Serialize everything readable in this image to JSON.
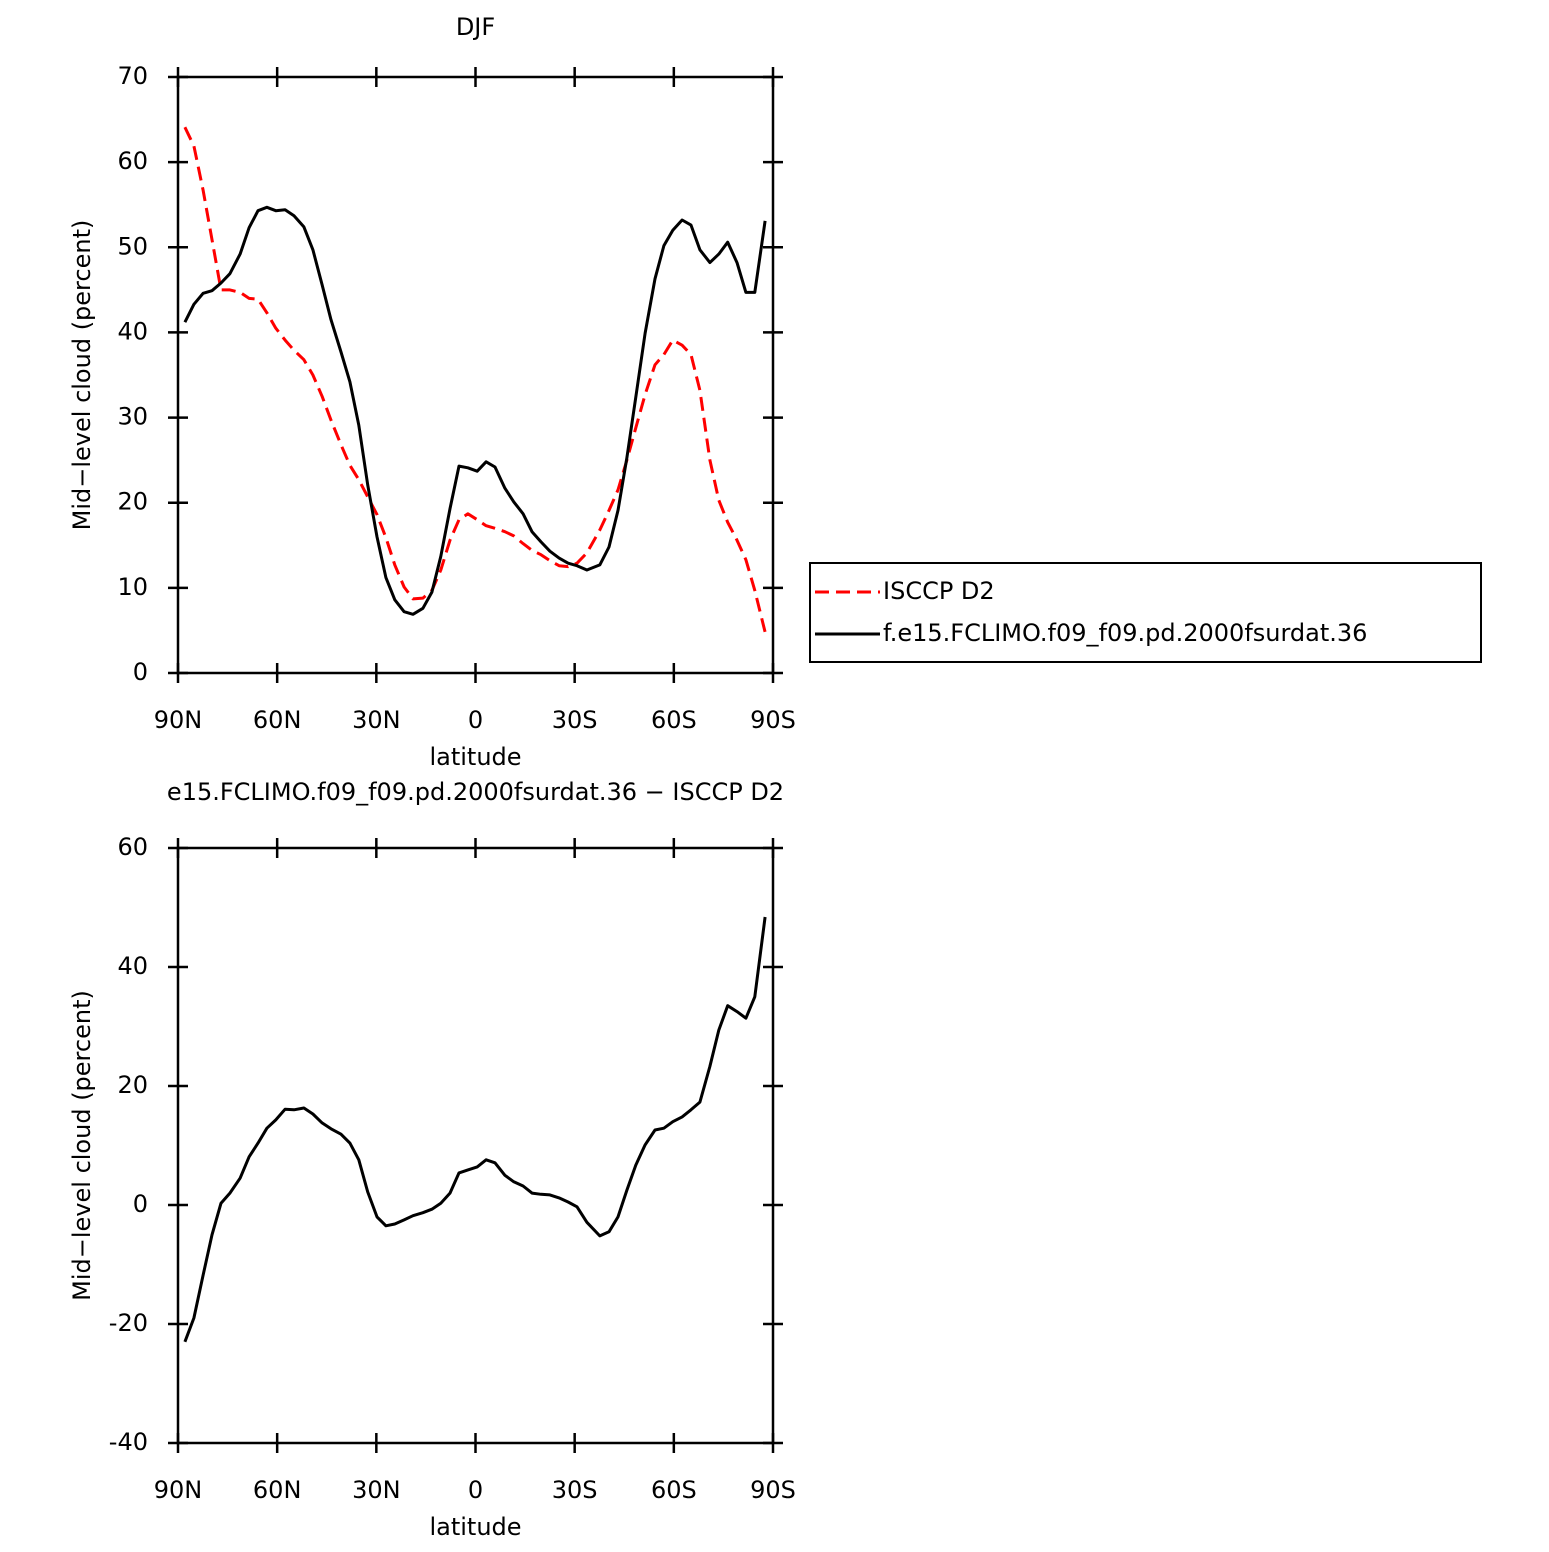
{
  "chart_data": [
    {
      "type": "line",
      "title": "DJF",
      "xlabel": "latitude",
      "ylabel": "Mid−level cloud (percent)",
      "x": [
        87.9,
        85.2,
        82.4,
        79.7,
        77,
        74.3,
        71.2,
        68.5,
        65.8,
        63.1,
        60.4,
        57.6,
        54.9,
        51.9,
        49.2,
        46.4,
        43.7,
        40.7,
        38,
        35.3,
        32.6,
        29.8,
        27.1,
        24.4,
        21.6,
        18.9,
        15.9,
        13.2,
        10.5,
        7.7,
        5,
        2.3,
        -0.5,
        -3.2,
        -5.9,
        -8.9,
        -11.6,
        -14.4,
        -17.1,
        -19.8,
        -22.5,
        -25.3,
        -28,
        -30.7,
        -33.7,
        -37.6,
        -40.4,
        -43.1,
        -45.8,
        -48.5,
        -51.3,
        -54.3,
        -57,
        -59.7,
        -62.5,
        -65.2,
        -67.9,
        -70.9,
        -73.6,
        -76.3,
        -79.1,
        -81.8,
        -84.5,
        -87.6
      ],
      "series": [
        {
          "name": "ISCCP D2",
          "color": "#ff0000",
          "linestyle": "dashed",
          "values": [
            64.1,
            61.9,
            56.7,
            50.9,
            45,
            45,
            44.7,
            44,
            43.9,
            42.3,
            40.5,
            39.1,
            37.9,
            36.8,
            35,
            32.5,
            29.7,
            26.8,
            24.4,
            22.7,
            20.7,
            18.6,
            15.9,
            12.7,
            10.1,
            8.7,
            8.8,
            9.7,
            12.1,
            15.6,
            18,
            18.7,
            18,
            17.3,
            17,
            16.6,
            16.1,
            15.2,
            14.4,
            13.9,
            13.2,
            12.6,
            12.5,
            12.9,
            14.1,
            16.8,
            19.1,
            21.5,
            25,
            28.8,
            32.7,
            36.2,
            37.4,
            39.1,
            38.5,
            37.4,
            33.2,
            25,
            20.3,
            17.7,
            15.6,
            13.3,
            9.7,
            4.8
          ]
        },
        {
          "name": "f.e15.FCLIMO.f09_f09.pd.2000fsurdat.36",
          "color": "#000000",
          "linestyle": "solid",
          "values": [
            41.2,
            43.3,
            44.6,
            44.9,
            45.8,
            46.9,
            49.2,
            52.3,
            54.3,
            54.7,
            54.3,
            54.4,
            53.7,
            52.4,
            49.7,
            45.6,
            41.5,
            37.7,
            34.2,
            29.1,
            22.1,
            16,
            11.2,
            8.6,
            7.2,
            6.9,
            7.6,
            9.5,
            13.7,
            19.3,
            24.3,
            24.1,
            23.7,
            24.8,
            24.2,
            21.7,
            20.1,
            18.7,
            16.6,
            15.4,
            14.3,
            13.5,
            12.9,
            12.6,
            12.1,
            12.7,
            14.8,
            19.1,
            25.3,
            32.4,
            39.9,
            46.3,
            50.2,
            52,
            53.2,
            52.6,
            49.7,
            48.2,
            49.2,
            50.6,
            48.2,
            44.7,
            44.7,
            53.1
          ]
        }
      ],
      "xlim": [
        90,
        -90
      ],
      "xticks": [
        {
          "value": 90,
          "label": "90N"
        },
        {
          "value": 60,
          "label": "60N"
        },
        {
          "value": 30,
          "label": "30N"
        },
        0,
        {
          "value": -30,
          "label": "30S"
        },
        {
          "value": -60,
          "label": "60S"
        },
        {
          "value": -90,
          "label": "90S"
        }
      ],
      "ylim": [
        0,
        70
      ],
      "yticks": [
        0,
        10,
        20,
        30,
        40,
        50,
        60,
        70
      ],
      "legend": "right"
    },
    {
      "type": "line",
      "title": "e15.FCLIMO.f09_f09.pd.2000fsurdat.36 − ISCCP D2",
      "xlabel": "latitude",
      "ylabel": "Mid−level cloud (percent)",
      "x": [
        87.9,
        85.2,
        82.4,
        79.7,
        77,
        74.3,
        71.2,
        68.5,
        65.8,
        63.1,
        60.4,
        57.6,
        54.9,
        51.9,
        49.2,
        46.4,
        43.7,
        40.7,
        38,
        35.3,
        32.6,
        29.8,
        27.1,
        24.4,
        21.6,
        18.9,
        15.9,
        13.2,
        10.5,
        7.7,
        5,
        2.3,
        -0.5,
        -3.2,
        -5.9,
        -8.9,
        -11.6,
        -14.4,
        -17.1,
        -19.8,
        -22.5,
        -25.3,
        -28,
        -30.7,
        -33.7,
        -37.6,
        -40.4,
        -43.1,
        -45.8,
        -48.5,
        -51.3,
        -54.3,
        -57,
        -59.7,
        -62.5,
        -65.2,
        -67.9,
        -70.9,
        -73.6,
        -76.3,
        -79.1,
        -81.8,
        -84.5,
        -87.6
      ],
      "values": [
        -23,
        -19,
        -11.8,
        -5,
        0.3,
        2,
        4.5,
        8.1,
        10.4,
        12.9,
        14.3,
        16.1,
        16,
        16.3,
        15.3,
        13.8,
        12.8,
        11.9,
        10.4,
        7.6,
        2.2,
        -2,
        -3.5,
        -3.2,
        -2.5,
        -1.8,
        -1.3,
        -0.7,
        0.3,
        2,
        5.4,
        5.9,
        6.4,
        7.6,
        7.1,
        5,
        3.9,
        3.2,
        2,
        1.8,
        1.7,
        1.2,
        0.5,
        -0.3,
        -2.9,
        -5.2,
        -4.5,
        -2,
        2.5,
        6.7,
        10.1,
        12.6,
        12.9,
        14,
        14.8,
        16,
        17.3,
        23.3,
        29.4,
        33.5,
        32.5,
        31.4,
        35,
        48.4
      ],
      "color": "#000000",
      "xlim": [
        90,
        -90
      ],
      "xticks": [
        {
          "value": 90,
          "label": "90N"
        },
        {
          "value": 60,
          "label": "60N"
        },
        {
          "value": 30,
          "label": "30N"
        },
        0,
        {
          "value": -30,
          "label": "30S"
        },
        {
          "value": -60,
          "label": "60S"
        },
        {
          "value": -90,
          "label": "90S"
        }
      ],
      "ylim": [
        -40,
        60
      ],
      "yticks": [
        -40,
        -20,
        0,
        20,
        40,
        60
      ]
    }
  ]
}
